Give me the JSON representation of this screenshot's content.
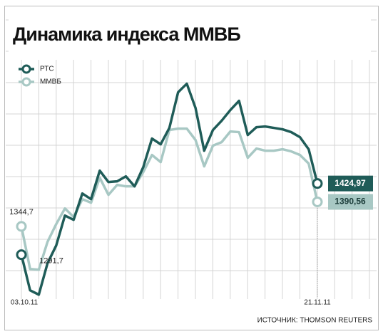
{
  "chart_data": {
    "type": "line",
    "title": "Динамика индекса ММВБ",
    "categories": [
      "03.10.11",
      null,
      null,
      null,
      null,
      null,
      null,
      null,
      null,
      null,
      null,
      null,
      null,
      null,
      null,
      null,
      null,
      null,
      null,
      null,
      null,
      null,
      null,
      null,
      null,
      null,
      null,
      null,
      null,
      null,
      null,
      null,
      null,
      null,
      "21.11.11"
    ],
    "ylim": [
      1210,
      1635
    ],
    "series": [
      {
        "name": "РТС",
        "color": "#1f5c58",
        "values": [
          1291.7,
          1225.0,
          1217.0,
          1275.7,
          1309.0,
          1365.0,
          1357.0,
          1406.3,
          1395.6,
          1449.0,
          1427.6,
          1429.0,
          1438.3,
          1419.6,
          1455.6,
          1509.0,
          1498.3,
          1529.0,
          1595.6,
          1611.6,
          1566.3,
          1486.3,
          1525.0,
          1542.3,
          1562.3,
          1579.6,
          1515.6,
          1530.3,
          1531.6,
          1529.0,
          1526.3,
          1521.0,
          1511.6,
          1489.0,
          1424.97
        ],
        "value_labels": [
          "1291,7",
          null,
          null,
          null,
          null,
          null,
          null,
          null,
          null,
          null,
          null,
          null,
          null,
          null,
          null,
          null,
          null,
          null,
          null,
          null,
          null,
          null,
          null,
          null,
          null,
          null,
          null,
          null,
          null,
          null,
          null,
          null,
          null,
          null,
          "1424,97"
        ]
      },
      {
        "name": "ММВБ",
        "color": "#a8c8c4",
        "values": [
          1344.7,
          1265.0,
          1263.7,
          1315.7,
          1349.0,
          1378.3,
          1362.3,
          1395.6,
          1389.0,
          1435.7,
          1403.7,
          1422.3,
          1419.6,
          1419.6,
          1446.3,
          1478.3,
          1465.0,
          1525.0,
          1527.6,
          1527.6,
          1506.3,
          1457.0,
          1495.7,
          1502.3,
          1522.3,
          1521.0,
          1473.0,
          1490.3,
          1486.3,
          1486.3,
          1489.0,
          1485.0,
          1478.3,
          1462.3,
          1390.56
        ],
        "value_labels": [
          "1344,7",
          null,
          null,
          null,
          null,
          null,
          null,
          null,
          null,
          null,
          null,
          null,
          null,
          null,
          null,
          null,
          null,
          null,
          null,
          null,
          null,
          null,
          null,
          null,
          null,
          null,
          null,
          null,
          null,
          null,
          null,
          null,
          null,
          null,
          "1390,56"
        ]
      }
    ],
    "source": "ИСТОЧНИК: THOMSON REUTERS"
  }
}
